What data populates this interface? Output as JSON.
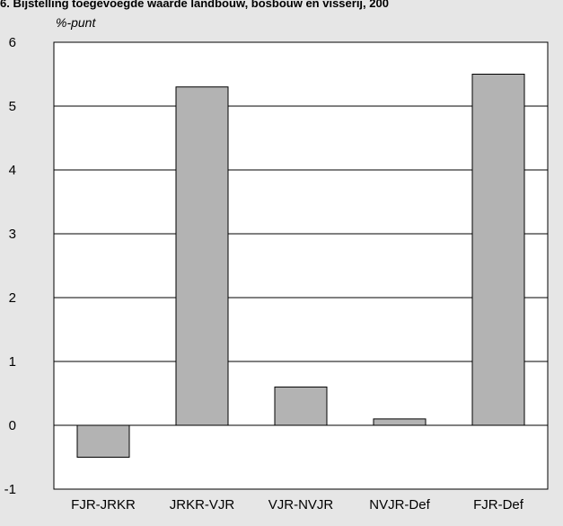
{
  "chart_data": {
    "type": "bar",
    "title": "6. Bijstelling toegevoegde waarde landbouw, bosbouw en visserij, 200",
    "ylabel": "%-punt",
    "xlabel": "",
    "categories": [
      "FJR-JRKR",
      "JRKR-VJR",
      "VJR-NVJR",
      "NVJR-Def",
      "FJR-Def"
    ],
    "values": [
      -0.5,
      5.3,
      0.6,
      0.1,
      5.5
    ],
    "ylim": [
      -1,
      6
    ],
    "yticks": [
      "-1",
      "0",
      "1",
      "2",
      "3",
      "4",
      "5",
      "6"
    ],
    "grid": true,
    "colors": {
      "bar_fill": "#b3b3b3",
      "bar_stroke": "#000000",
      "plot_bg": "#ffffff",
      "page_bg": "#e6e6e6",
      "grid": "#000000"
    }
  }
}
